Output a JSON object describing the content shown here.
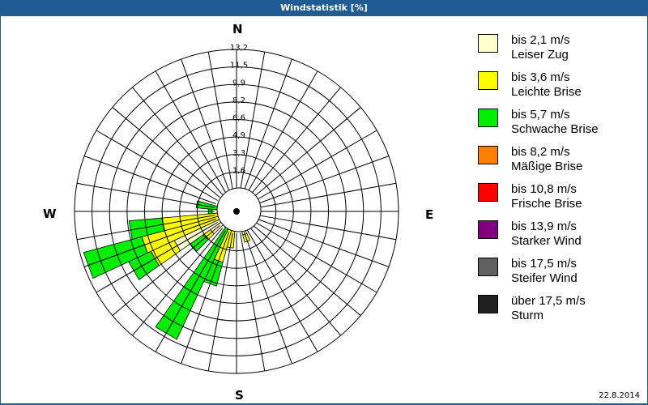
{
  "window": {
    "title": "Windstatistik [%]",
    "date": "22.8.2014"
  },
  "compass": {
    "north": "N",
    "east": "E",
    "south": "S",
    "west": "W"
  },
  "legend": [
    {
      "range": "bis 2,1 m/s",
      "name": "Leiser Zug",
      "color": "#ffffcc"
    },
    {
      "range": "bis 3,6 m/s",
      "name": "Leichte Brise",
      "color": "#ffff00"
    },
    {
      "range": "bis 5,7 m/s",
      "name": "Schwache Brise",
      "color": "#00ee00"
    },
    {
      "range": "bis 8,2 m/s",
      "name": "Mäßige Brise",
      "color": "#ff8000"
    },
    {
      "range": "bis 10,8 m/s",
      "name": "Frische Brise",
      "color": "#ff0000"
    },
    {
      "range": "bis 13,9 m/s",
      "name": "Starker Wind",
      "color": "#800080"
    },
    {
      "range": "bis 17,5 m/s",
      "name": "Steifer Wind",
      "color": "#606060"
    },
    {
      "range": "über 17,5 m/s",
      "name": "Sturm",
      "color": "#202020"
    }
  ],
  "chart_data": {
    "type": "wind-rose",
    "title": "Windstatistik [%]",
    "radial_ticks": [
      "1,6",
      "3,3",
      "4,9",
      "6,6",
      "8,2",
      "9,9",
      "11,5",
      "13,2"
    ],
    "radial_max": 13.2,
    "sector_step_deg": 10,
    "series_names": [
      "Leiser Zug",
      "Leichte Brise",
      "Schwache Brise",
      "Mäßige Brise",
      "Frische Brise",
      "Starker Wind",
      "Steifer Wind",
      "Sturm"
    ],
    "petals": [
      {
        "direction_deg": 160,
        "values": [
          2.0,
          0.6,
          0,
          0,
          0,
          0,
          0,
          0
        ]
      },
      {
        "direction_deg": 190,
        "values": [
          0.5,
          2.5,
          0,
          0,
          0,
          0,
          0,
          0
        ]
      },
      {
        "direction_deg": 200,
        "values": [
          0.3,
          4.0,
          2.0,
          0,
          0,
          0,
          0,
          0
        ]
      },
      {
        "direction_deg": 210,
        "values": [
          0.3,
          1.0,
          10.2,
          0,
          0,
          0,
          0,
          0
        ]
      },
      {
        "direction_deg": 220,
        "values": [
          0.5,
          0,
          0,
          0,
          0,
          0,
          0,
          0
        ]
      },
      {
        "direction_deg": 230,
        "values": [
          2.6,
          0.7,
          1.3,
          0,
          0,
          0,
          0,
          0
        ]
      },
      {
        "direction_deg": 240,
        "values": [
          5.6,
          2.1,
          2.0,
          0,
          0,
          0,
          0,
          0
        ]
      },
      {
        "direction_deg": 250,
        "values": [
          0.8,
          7.2,
          4.9,
          0,
          0,
          0,
          0,
          0
        ]
      },
      {
        "direction_deg": 260,
        "values": [
          0.5,
          5.6,
          2.7,
          0,
          0,
          0,
          0,
          0
        ]
      },
      {
        "direction_deg": 270,
        "values": [
          2.0,
          0,
          0.3,
          0,
          0,
          0,
          0,
          0
        ]
      },
      {
        "direction_deg": 280,
        "values": [
          0.5,
          0.5,
          2.3,
          0,
          0,
          0,
          0,
          0
        ]
      }
    ]
  }
}
